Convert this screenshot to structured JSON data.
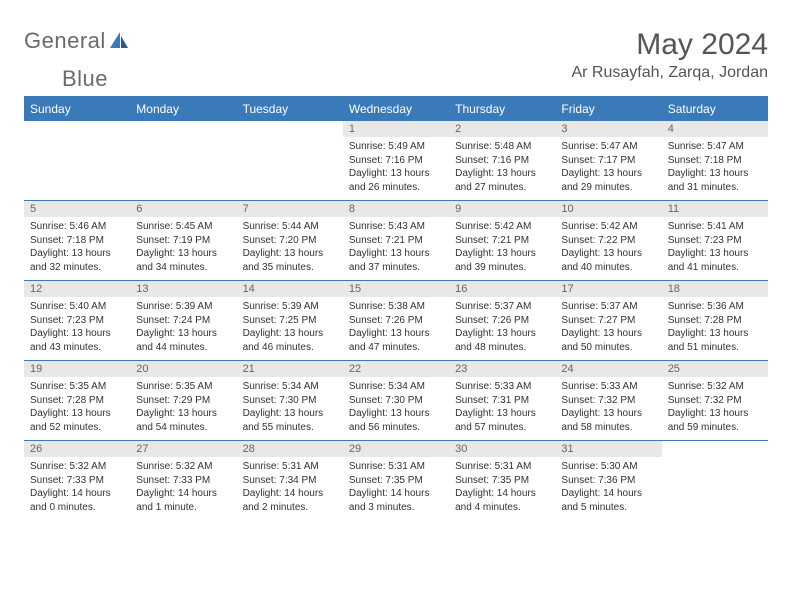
{
  "logo": {
    "text1": "General",
    "text2": "Blue"
  },
  "title": "May 2024",
  "location": "Ar Rusayfah, Zarqa, Jordan",
  "colors": {
    "header_bg": "#3a7ab8",
    "header_fg": "#ffffff",
    "daynum_bg": "#e8e8e8",
    "rule": "#3a7ab8"
  },
  "weekdays": [
    "Sunday",
    "Monday",
    "Tuesday",
    "Wednesday",
    "Thursday",
    "Friday",
    "Saturday"
  ],
  "weeks": [
    [
      null,
      null,
      null,
      {
        "n": "1",
        "sr": "5:49 AM",
        "ss": "7:16 PM",
        "dl": "13 hours and 26 minutes."
      },
      {
        "n": "2",
        "sr": "5:48 AM",
        "ss": "7:16 PM",
        "dl": "13 hours and 27 minutes."
      },
      {
        "n": "3",
        "sr": "5:47 AM",
        "ss": "7:17 PM",
        "dl": "13 hours and 29 minutes."
      },
      {
        "n": "4",
        "sr": "5:47 AM",
        "ss": "7:18 PM",
        "dl": "13 hours and 31 minutes."
      }
    ],
    [
      {
        "n": "5",
        "sr": "5:46 AM",
        "ss": "7:18 PM",
        "dl": "13 hours and 32 minutes."
      },
      {
        "n": "6",
        "sr": "5:45 AM",
        "ss": "7:19 PM",
        "dl": "13 hours and 34 minutes."
      },
      {
        "n": "7",
        "sr": "5:44 AM",
        "ss": "7:20 PM",
        "dl": "13 hours and 35 minutes."
      },
      {
        "n": "8",
        "sr": "5:43 AM",
        "ss": "7:21 PM",
        "dl": "13 hours and 37 minutes."
      },
      {
        "n": "9",
        "sr": "5:42 AM",
        "ss": "7:21 PM",
        "dl": "13 hours and 39 minutes."
      },
      {
        "n": "10",
        "sr": "5:42 AM",
        "ss": "7:22 PM",
        "dl": "13 hours and 40 minutes."
      },
      {
        "n": "11",
        "sr": "5:41 AM",
        "ss": "7:23 PM",
        "dl": "13 hours and 41 minutes."
      }
    ],
    [
      {
        "n": "12",
        "sr": "5:40 AM",
        "ss": "7:23 PM",
        "dl": "13 hours and 43 minutes."
      },
      {
        "n": "13",
        "sr": "5:39 AM",
        "ss": "7:24 PM",
        "dl": "13 hours and 44 minutes."
      },
      {
        "n": "14",
        "sr": "5:39 AM",
        "ss": "7:25 PM",
        "dl": "13 hours and 46 minutes."
      },
      {
        "n": "15",
        "sr": "5:38 AM",
        "ss": "7:26 PM",
        "dl": "13 hours and 47 minutes."
      },
      {
        "n": "16",
        "sr": "5:37 AM",
        "ss": "7:26 PM",
        "dl": "13 hours and 48 minutes."
      },
      {
        "n": "17",
        "sr": "5:37 AM",
        "ss": "7:27 PM",
        "dl": "13 hours and 50 minutes."
      },
      {
        "n": "18",
        "sr": "5:36 AM",
        "ss": "7:28 PM",
        "dl": "13 hours and 51 minutes."
      }
    ],
    [
      {
        "n": "19",
        "sr": "5:35 AM",
        "ss": "7:28 PM",
        "dl": "13 hours and 52 minutes."
      },
      {
        "n": "20",
        "sr": "5:35 AM",
        "ss": "7:29 PM",
        "dl": "13 hours and 54 minutes."
      },
      {
        "n": "21",
        "sr": "5:34 AM",
        "ss": "7:30 PM",
        "dl": "13 hours and 55 minutes."
      },
      {
        "n": "22",
        "sr": "5:34 AM",
        "ss": "7:30 PM",
        "dl": "13 hours and 56 minutes."
      },
      {
        "n": "23",
        "sr": "5:33 AM",
        "ss": "7:31 PM",
        "dl": "13 hours and 57 minutes."
      },
      {
        "n": "24",
        "sr": "5:33 AM",
        "ss": "7:32 PM",
        "dl": "13 hours and 58 minutes."
      },
      {
        "n": "25",
        "sr": "5:32 AM",
        "ss": "7:32 PM",
        "dl": "13 hours and 59 minutes."
      }
    ],
    [
      {
        "n": "26",
        "sr": "5:32 AM",
        "ss": "7:33 PM",
        "dl": "14 hours and 0 minutes."
      },
      {
        "n": "27",
        "sr": "5:32 AM",
        "ss": "7:33 PM",
        "dl": "14 hours and 1 minute."
      },
      {
        "n": "28",
        "sr": "5:31 AM",
        "ss": "7:34 PM",
        "dl": "14 hours and 2 minutes."
      },
      {
        "n": "29",
        "sr": "5:31 AM",
        "ss": "7:35 PM",
        "dl": "14 hours and 3 minutes."
      },
      {
        "n": "30",
        "sr": "5:31 AM",
        "ss": "7:35 PM",
        "dl": "14 hours and 4 minutes."
      },
      {
        "n": "31",
        "sr": "5:30 AM",
        "ss": "7:36 PM",
        "dl": "14 hours and 5 minutes."
      },
      null
    ]
  ],
  "labels": {
    "sunrise": "Sunrise:",
    "sunset": "Sunset:",
    "daylight": "Daylight:"
  }
}
